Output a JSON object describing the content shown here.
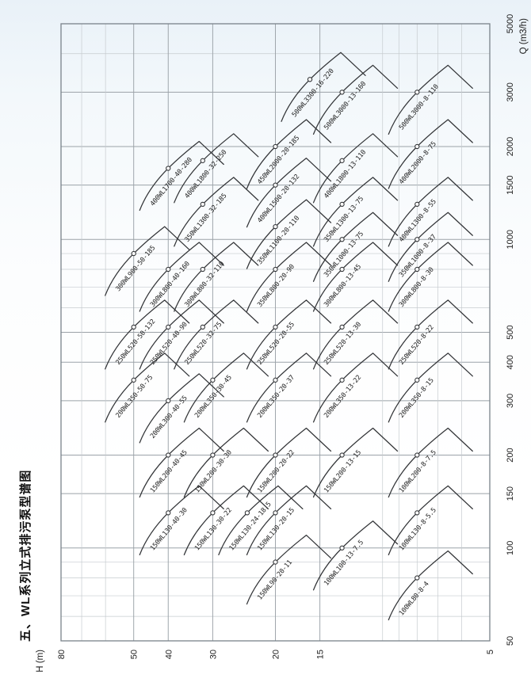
{
  "title": "五、WL系列立式排污泵型谱图",
  "axes": {
    "x": {
      "unit": "Q (m3/h)",
      "scale": "log",
      "min": 50,
      "max": 5000,
      "tick_labels": [
        50,
        100,
        150,
        200,
        300,
        400,
        500,
        1000,
        1500,
        2000,
        3000,
        5000
      ],
      "gridlines": [
        50,
        60,
        70,
        80,
        90,
        100,
        150,
        200,
        300,
        400,
        500,
        600,
        700,
        800,
        900,
        1000,
        1500,
        2000,
        3000,
        4000,
        5000
      ]
    },
    "y": {
      "unit": "H (m)",
      "scale": "log",
      "min": 5,
      "max": 80,
      "tick_labels": [
        80,
        50,
        40,
        30,
        20,
        15,
        5
      ],
      "gridlines": [
        5,
        6,
        7,
        8,
        9,
        10,
        15,
        20,
        30,
        40,
        50,
        60,
        70,
        80
      ]
    }
  },
  "chart_data": {
    "type": "line",
    "title": "五、WL系列立式排污泵型谱图",
    "xlabel": "Q (m3/h)",
    "ylabel": "H (m)",
    "x_range": [
      50,
      5000
    ],
    "y_range": [
      5,
      80
    ],
    "log_log": true,
    "grid": true,
    "legend": "none",
    "note": "Each curve is one pump model; circle marker = rated duty point (Q m3/h, H m) encoded in the model name; short tail = impeller trim limit.",
    "series": [
      {
        "label": "300WL900-50-185",
        "Q": 900,
        "H": 50
      },
      {
        "label": "250WL520-50-132",
        "Q": 520,
        "H": 50
      },
      {
        "label": "200WL350-50-75",
        "Q": 350,
        "H": 50
      },
      {
        "label": "400WL1700-40-280",
        "Q": 1700,
        "H": 40
      },
      {
        "label": "300WL800-40-160",
        "Q": 800,
        "H": 40
      },
      {
        "label": "250WL520-40-90",
        "Q": 520,
        "H": 40
      },
      {
        "label": "200WL300-40-55",
        "Q": 300,
        "H": 40
      },
      {
        "label": "150WL200-40-45",
        "Q": 200,
        "H": 40
      },
      {
        "label": "150WL130-40-30",
        "Q": 130,
        "H": 40
      },
      {
        "label": "400WL1800-32-250",
        "Q": 1800,
        "H": 32
      },
      {
        "label": "350WL1300-32-185",
        "Q": 1300,
        "H": 32
      },
      {
        "label": "300WL800-32-110",
        "Q": 800,
        "H": 32
      },
      {
        "label": "250WL520-32-75",
        "Q": 520,
        "H": 32
      },
      {
        "label": "200WL350-30-45",
        "Q": 350,
        "H": 30
      },
      {
        "label": "150WL200-30-30",
        "Q": 200,
        "H": 30
      },
      {
        "label": "150WL130-30-22",
        "Q": 130,
        "H": 30
      },
      {
        "label": "150WL130-24-18.5",
        "Q": 130,
        "H": 24
      },
      {
        "label": "450WL2000-20-185",
        "Q": 2000,
        "H": 20
      },
      {
        "label": "400WL1500-20-132",
        "Q": 1500,
        "H": 20
      },
      {
        "label": "350WL1100-20-110",
        "Q": 1100,
        "H": 20
      },
      {
        "label": "350WL800-20-90",
        "Q": 800,
        "H": 20
      },
      {
        "label": "250WL520-20-55",
        "Q": 520,
        "H": 20
      },
      {
        "label": "200WL350-20-37",
        "Q": 350,
        "H": 20
      },
      {
        "label": "150WL200-20-22",
        "Q": 200,
        "H": 20
      },
      {
        "label": "150WL130-20-15",
        "Q": 130,
        "H": 20
      },
      {
        "label": "150WL90-20-11",
        "Q": 90,
        "H": 20
      },
      {
        "label": "500WL3300-16-220",
        "Q": 3300,
        "H": 16
      },
      {
        "label": "500WL3000-13-160",
        "Q": 3000,
        "H": 13
      },
      {
        "label": "400WL1800-13-110",
        "Q": 1800,
        "H": 13
      },
      {
        "label": "350WL1300-13-75",
        "Q": 1300,
        "H": 13
      },
      {
        "label": "350WL1000-13-75",
        "Q": 1000,
        "H": 13
      },
      {
        "label": "300WL800-13-45",
        "Q": 800,
        "H": 13
      },
      {
        "label": "250WL520-13-30",
        "Q": 520,
        "H": 13
      },
      {
        "label": "200WL350-13-22",
        "Q": 350,
        "H": 13
      },
      {
        "label": "150WL200-13-15",
        "Q": 200,
        "H": 13
      },
      {
        "label": "100WL100-13-7.5",
        "Q": 100,
        "H": 13
      },
      {
        "label": "500WL3000-8-110",
        "Q": 3000,
        "H": 8
      },
      {
        "label": "400WL2000-8-75",
        "Q": 2000,
        "H": 8
      },
      {
        "label": "400WL1300-8-55",
        "Q": 1300,
        "H": 8
      },
      {
        "label": "350WL1000-8-37",
        "Q": 1000,
        "H": 8
      },
      {
        "label": "300WL800-8-30",
        "Q": 800,
        "H": 8
      },
      {
        "label": "250WL520-8-22",
        "Q": 520,
        "H": 8
      },
      {
        "label": "200WL350-8-15",
        "Q": 350,
        "H": 8
      },
      {
        "label": "100WL200-8-7.5",
        "Q": 200,
        "H": 8
      },
      {
        "label": "100WL130-8-5.5",
        "Q": 130,
        "H": 8
      },
      {
        "label": "100WL80-8-4",
        "Q": 80,
        "H": 8
      }
    ]
  },
  "colors": {
    "curve": "#333538",
    "grid_minor": "#c6cbcf",
    "grid_major": "#9ba2a8",
    "border": "#79828a",
    "page_tint_top": "#e9f1f8",
    "page_bottom": "#ffffff"
  }
}
